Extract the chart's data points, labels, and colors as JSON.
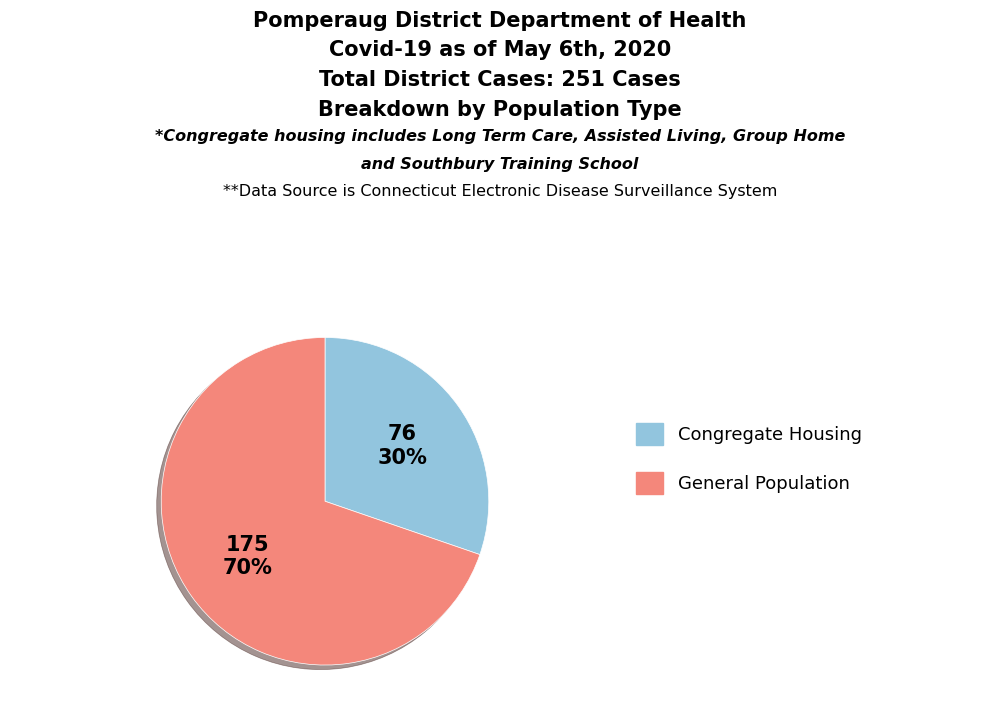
{
  "title_line1": "Pomperaug District Department of Health",
  "title_line2": "Covid-19 as of May 6th, 2020",
  "title_line3": "Total District Cases: 251 Cases",
  "title_line4": "Breakdown by Population Type",
  "subtitle_line1": "*Congregate housing includes Long Term Care, Assisted Living, Group Home",
  "subtitle_line2": "and Southbury Training School",
  "subtitle_line3": "**Data Source is Connecticut Electronic Disease Surveillance System",
  "labels": [
    "Congregate Housing",
    "General Population"
  ],
  "values": [
    76,
    175
  ],
  "percentages": [
    "30%",
    "70%"
  ],
  "colors": [
    "#92C5DE",
    "#F4877B"
  ],
  "shadow": true,
  "startangle": 90,
  "legend_labels": [
    "Congregate Housing",
    "General Population"
  ],
  "background_color": "#ffffff",
  "title_fontsize": 15,
  "subtitle_fontsize": 11.5,
  "label_fontsize": 15
}
